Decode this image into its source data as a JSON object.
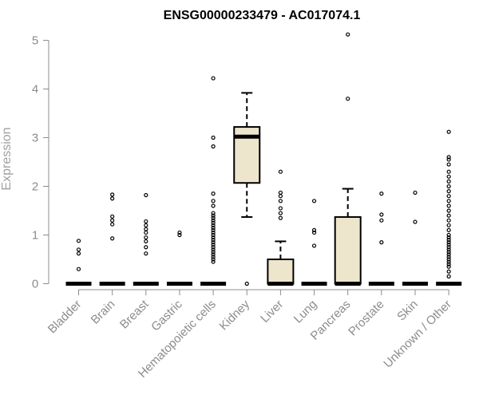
{
  "chart_data": {
    "type": "box",
    "title": "ENSG00000233479 - AC017074.1",
    "ylabel": "Expression",
    "xlabel": "",
    "ylim": [
      0,
      5
    ],
    "yticks": [
      0,
      1,
      2,
      3,
      4,
      5
    ],
    "colors": {
      "box_fill": "#ede6cc",
      "stroke": "#000000",
      "axis": "#8c8c8c"
    },
    "categories": [
      "Bladder",
      "Brain",
      "Breast",
      "Gastric",
      "Hematopoietic cells",
      "Kidney",
      "Liver",
      "Lung",
      "Pancreas",
      "Prostate",
      "Skin",
      "Unknown / Other"
    ],
    "boxes": [
      {
        "category": "Bladder",
        "whisker_low": 0,
        "q1": 0,
        "median": 0,
        "q3": 0,
        "whisker_high": 0,
        "outliers": [
          0.3,
          0.62,
          0.7,
          0.88
        ]
      },
      {
        "category": "Brain",
        "whisker_low": 0,
        "q1": 0,
        "median": 0,
        "q3": 0,
        "whisker_high": 0,
        "outliers": [
          0.93,
          1.22,
          1.3,
          1.38,
          1.75,
          1.83
        ]
      },
      {
        "category": "Breast",
        "whisker_low": 0,
        "q1": 0,
        "median": 0,
        "q3": 0,
        "whisker_high": 0,
        "outliers": [
          0.62,
          0.75,
          0.87,
          0.95,
          1.05,
          1.12,
          1.2,
          1.28,
          1.82
        ]
      },
      {
        "category": "Gastric",
        "whisker_low": 0,
        "q1": 0,
        "median": 0,
        "q3": 0,
        "whisker_high": 0,
        "outliers": [
          1.0,
          1.05
        ]
      },
      {
        "category": "Hematopoietic cells",
        "whisker_low": 0,
        "q1": 0,
        "median": 0,
        "q3": 0,
        "whisker_high": 0,
        "outliers": [
          0.45,
          0.5,
          0.55,
          0.6,
          0.65,
          0.7,
          0.75,
          0.8,
          0.85,
          0.9,
          0.95,
          1.0,
          1.05,
          1.1,
          1.15,
          1.2,
          1.25,
          1.3,
          1.35,
          1.4,
          1.45,
          1.6,
          1.7,
          1.85,
          2.82,
          3.0,
          4.22
        ]
      },
      {
        "category": "Kidney",
        "whisker_low": 1.37,
        "q1": 2.07,
        "median": 3.02,
        "q3": 3.22,
        "whisker_high": 3.92,
        "outliers": [
          0
        ]
      },
      {
        "category": "Liver",
        "whisker_low": 0,
        "q1": 0,
        "median": 0,
        "q3": 0.5,
        "whisker_high": 0.87,
        "outliers": [
          1.35,
          1.45,
          1.55,
          1.7,
          1.8,
          1.87,
          2.3
        ]
      },
      {
        "category": "Lung",
        "whisker_low": 0,
        "q1": 0,
        "median": 0,
        "q3": 0,
        "whisker_high": 0,
        "outliers": [
          0.78,
          1.05,
          1.1,
          1.7
        ]
      },
      {
        "category": "Pancreas",
        "whisker_low": 0,
        "q1": 0,
        "median": 0,
        "q3": 1.37,
        "whisker_high": 1.95,
        "outliers": [
          3.8,
          5.12
        ]
      },
      {
        "category": "Prostate",
        "whisker_low": 0,
        "q1": 0,
        "median": 0,
        "q3": 0,
        "whisker_high": 0,
        "outliers": [
          0.85,
          1.3,
          1.42,
          1.85
        ]
      },
      {
        "category": "Skin",
        "whisker_low": 0,
        "q1": 0,
        "median": 0,
        "q3": 0,
        "whisker_high": 0,
        "outliers": [
          1.27,
          1.87
        ]
      },
      {
        "category": "Unknown / Other",
        "whisker_low": 0,
        "q1": 0,
        "median": 0,
        "q3": 0,
        "whisker_high": 0,
        "outliers": [
          0.15,
          0.25,
          0.35,
          0.4,
          0.45,
          0.5,
          0.55,
          0.6,
          0.65,
          0.7,
          0.75,
          0.8,
          0.85,
          0.9,
          0.95,
          1.0,
          1.1,
          1.2,
          1.3,
          1.4,
          1.5,
          1.6,
          1.7,
          1.8,
          1.9,
          2.0,
          2.1,
          2.2,
          2.3,
          2.45,
          2.55,
          2.6,
          3.12
        ]
      }
    ]
  }
}
